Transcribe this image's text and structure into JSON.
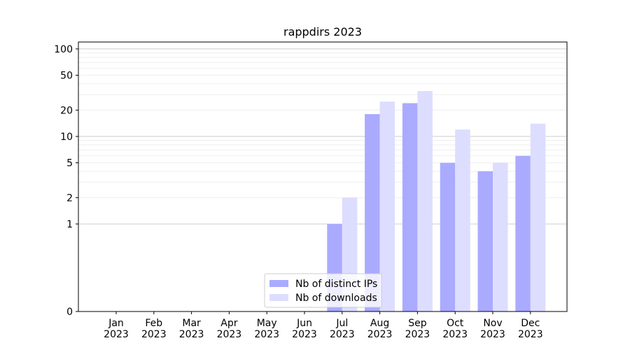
{
  "chart_data": {
    "type": "bar",
    "title": "rappdirs 2023",
    "xlabel": "",
    "ylabel": "",
    "y_scale": "symlog",
    "ylim": [
      0,
      120
    ],
    "y_ticks": [
      0,
      1,
      2,
      5,
      10,
      20,
      50,
      100
    ],
    "y_tick_labels": [
      "0",
      "1",
      "2",
      "5",
      "10",
      "20",
      "50",
      "100"
    ],
    "grid": "horizontal",
    "categories": [
      "Jan\n2023",
      "Feb\n2023",
      "Mar\n2023",
      "Apr\n2023",
      "May\n2023",
      "Jun\n2023",
      "Jul\n2023",
      "Aug\n2023",
      "Sep\n2023",
      "Oct\n2023",
      "Nov\n2023",
      "Dec\n2023"
    ],
    "series": [
      {
        "name": "Nb of distinct IPs",
        "color": "#aaaaff",
        "values": [
          0,
          0,
          0,
          0,
          0,
          0,
          1,
          18,
          24,
          5,
          4,
          6
        ]
      },
      {
        "name": "Nb of downloads",
        "color": "#ddddff",
        "values": [
          0,
          0,
          0,
          0,
          0,
          0,
          2,
          25,
          33,
          12,
          5,
          14
        ]
      }
    ],
    "legend_placement": "lower-center"
  }
}
